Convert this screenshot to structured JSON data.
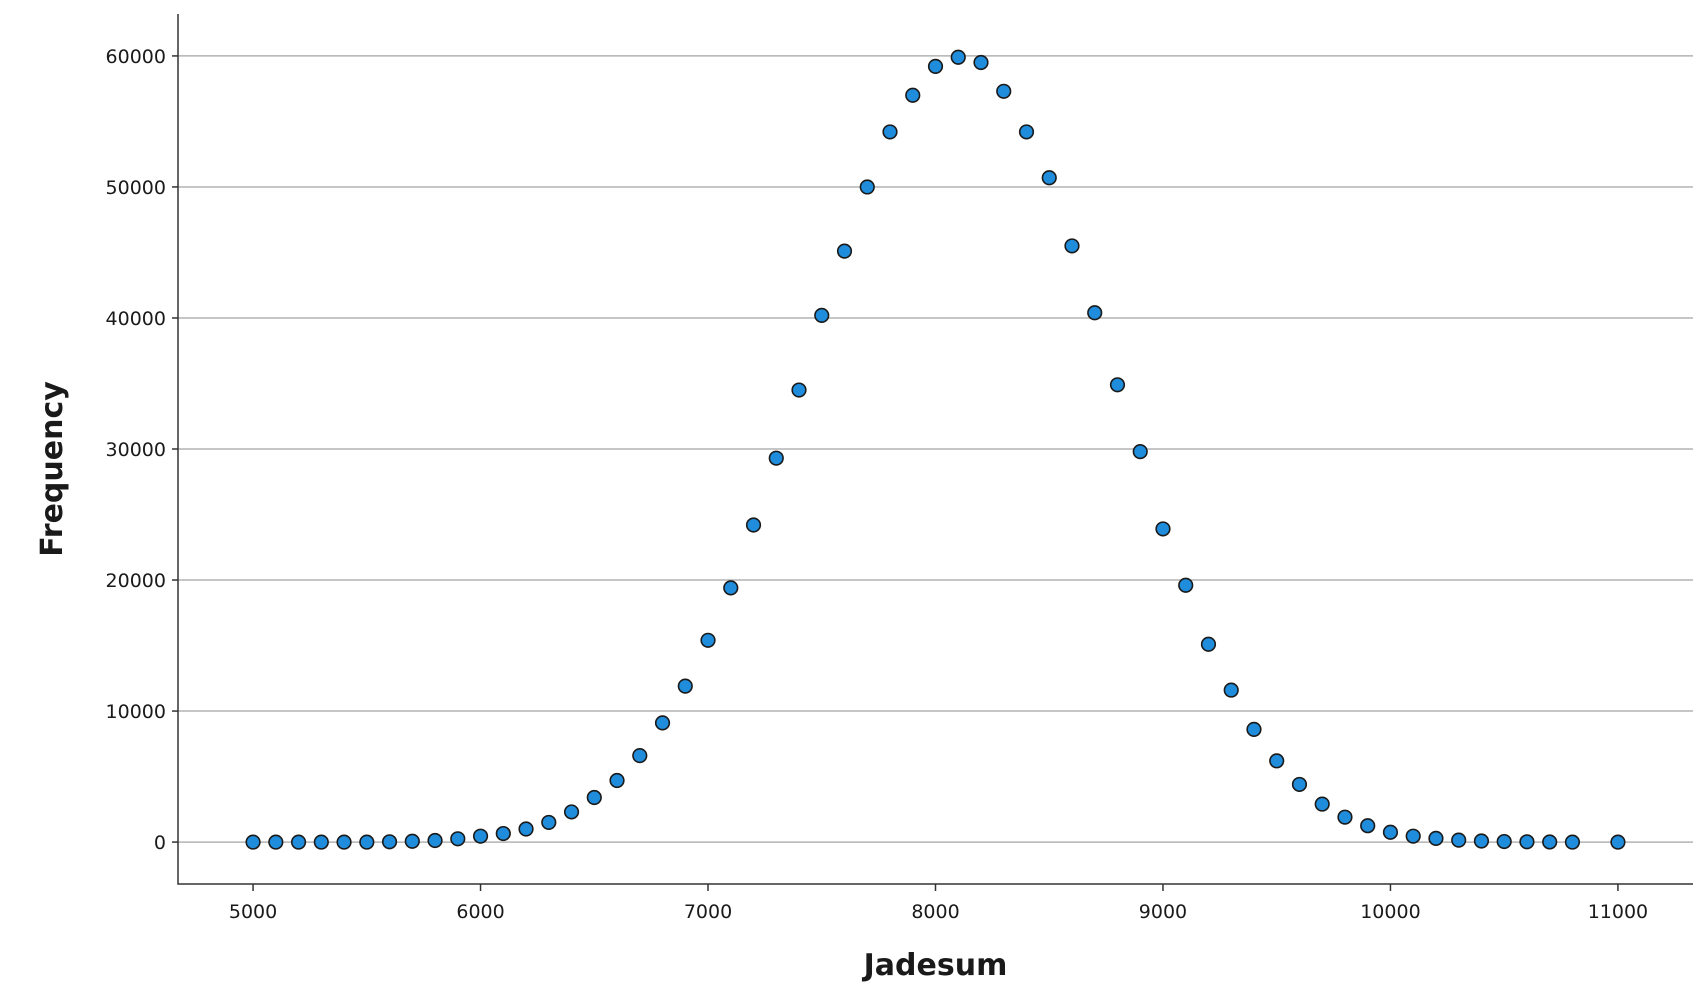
{
  "chart_data": {
    "type": "scatter",
    "title": "",
    "xlabel": "Jadesum",
    "ylabel": "Frequency",
    "xlim": [
      4670,
      11330
    ],
    "ylim": [
      -3200,
      63200
    ],
    "x_ticks": [
      5000,
      6000,
      7000,
      8000,
      9000,
      10000,
      11000
    ],
    "x_tick_labels": [
      "5000",
      "6000",
      "7000",
      "8000",
      "9000",
      "10000",
      "11000"
    ],
    "y_ticks": [
      0,
      10000,
      20000,
      30000,
      40000,
      50000,
      60000
    ],
    "y_tick_labels": [
      "0",
      "10000",
      "20000",
      "30000",
      "40000",
      "50000",
      "60000"
    ],
    "grid": true,
    "legend": "none",
    "marker_color": "#1f8ddc",
    "marker_edge_color": "#1a1a1a",
    "series": [
      {
        "x": [
          5000,
          5100,
          5200,
          5300,
          5400,
          5500,
          5600,
          5700,
          5800,
          5900,
          6000,
          6100,
          6200,
          6300,
          6400,
          6500,
          6600,
          6700,
          6800,
          6900,
          7000,
          7100,
          7200,
          7300,
          7400,
          7500,
          7600,
          7700,
          7800,
          7900,
          8000,
          8100,
          8200,
          8300,
          8400,
          8500,
          8600,
          8700,
          8800,
          8900,
          9000,
          9100,
          9200,
          9300,
          9400,
          9500,
          9600,
          9700,
          9800,
          9900,
          10000,
          10100,
          10200,
          10300,
          10400,
          10500,
          10600,
          10700,
          10800,
          11000
        ],
        "y": [
          0,
          0,
          0,
          0,
          0,
          0,
          20,
          60,
          120,
          250,
          450,
          650,
          1000,
          1500,
          2300,
          3400,
          4700,
          6600,
          9100,
          11900,
          15400,
          19400,
          24200,
          29300,
          34500,
          40200,
          45100,
          50000,
          54200,
          57000,
          59200,
          59900,
          59500,
          57300,
          54200,
          50700,
          45500,
          40400,
          34900,
          29800,
          23900,
          19600,
          15100,
          11600,
          8600,
          6200,
          4400,
          2900,
          1900,
          1250,
          750,
          450,
          280,
          150,
          80,
          40,
          20,
          10,
          0,
          0
        ]
      }
    ]
  }
}
